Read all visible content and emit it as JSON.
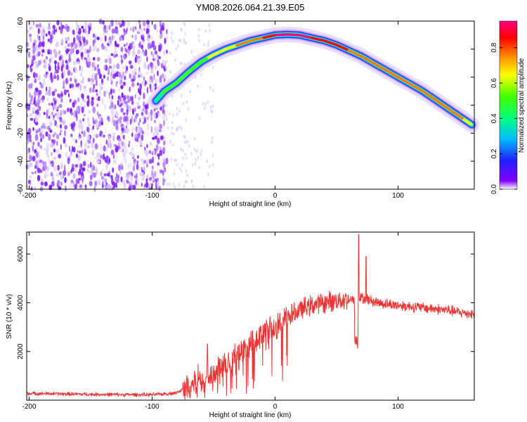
{
  "figure": {
    "title": "YM08.2026.064.21.39.E05"
  },
  "chart_data": [
    {
      "type": "heatmap",
      "title": "YM08.2026.064.21.39.E05",
      "xlabel": "Height of straight line (km)",
      "ylabel": "Frequency (Hz)",
      "xlim": [
        -202,
        162
      ],
      "ylim": [
        -60,
        60
      ],
      "xticks": [
        -200,
        -100,
        0,
        100
      ],
      "yticks": [
        -60,
        -40,
        -20,
        0,
        20,
        40,
        60
      ],
      "colorbar": {
        "label": "Normalized spectral amplitude",
        "range": [
          0,
          0.95
        ],
        "ticks": [
          "0.0",
          "0.2",
          "0.4",
          "0.6",
          "0.8"
        ],
        "colormap": "rainbow"
      },
      "ridge": {
        "description": "Doppler frequency track of the main echo",
        "x": [
          -97,
          -90,
          -80,
          -70,
          -60,
          -50,
          -40,
          -30,
          -20,
          -10,
          0,
          10,
          20,
          30,
          40,
          50,
          60,
          70,
          80,
          90,
          100,
          110,
          120,
          130,
          140,
          150,
          160
        ],
        "y": [
          3,
          10,
          16,
          24,
          31,
          36,
          40,
          43,
          46,
          48,
          50,
          50.5,
          50,
          48,
          46,
          43,
          39,
          35,
          30,
          25,
          20,
          15,
          10,
          4,
          -2,
          -8,
          -14
        ],
        "amplitude": [
          0.3,
          0.45,
          0.5,
          0.55,
          0.5,
          0.6,
          0.6,
          0.7,
          0.75,
          0.8,
          0.9,
          0.95,
          0.95,
          0.9,
          0.85,
          0.85,
          0.8,
          0.8,
          0.8,
          0.8,
          0.8,
          0.8,
          0.75,
          0.75,
          0.75,
          0.7,
          0.65
        ]
      },
      "noise_region": {
        "x_range": [
          -202,
          -88
        ],
        "amplitude_range": [
          0.0,
          0.2
        ]
      }
    },
    {
      "type": "line",
      "xlabel": "Height of straight line (km)",
      "ylabel": "SNR (10 * v/v)",
      "xlim": [
        -202,
        162
      ],
      "ylim": [
        0,
        6900
      ],
      "xticks": [
        -200,
        -100,
        0,
        100
      ],
      "yticks": [
        2000,
        4000,
        6000
      ],
      "series": [
        {
          "name": "SNR",
          "color": "#ee3333",
          "x": [
            -202,
            -150,
            -100,
            -80,
            -70,
            -60,
            -50,
            -40,
            -30,
            -20,
            -10,
            0,
            10,
            20,
            30,
            40,
            50,
            60,
            65,
            70,
            75,
            80,
            90,
            100,
            110,
            120,
            130,
            140,
            150,
            162
          ],
          "y": [
            280,
            240,
            220,
            300,
            600,
            900,
            1200,
            1500,
            1900,
            2200,
            2700,
            3000,
            3400,
            3700,
            3900,
            4000,
            4100,
            4150,
            4050,
            4200,
            4150,
            4050,
            3950,
            3900,
            3850,
            3800,
            3750,
            3700,
            3600,
            3550
          ]
        }
      ],
      "spikes": [
        {
          "x": 68,
          "y": 6800
        },
        {
          "x": 74,
          "y": 5900
        },
        {
          "x": -55,
          "y": 2300
        }
      ]
    }
  ]
}
